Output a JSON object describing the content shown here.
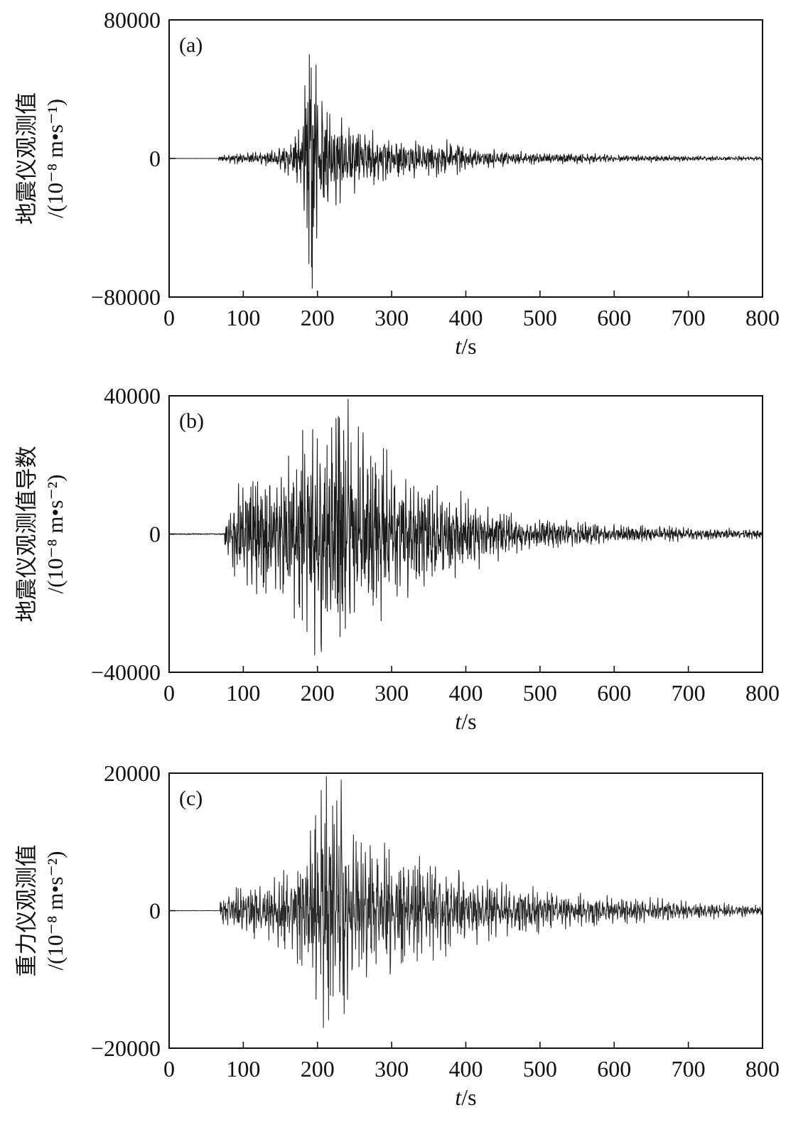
{
  "chart_data": [
    {
      "type": "line",
      "panel_label": "(a)",
      "ylabel": "地震仪观测值",
      "yunit": "/(10⁻⁸ m•s⁻¹)",
      "xlabel": "t/s",
      "xlim": [
        0,
        800
      ],
      "ylim": [
        -80000,
        80000
      ],
      "xticks": [
        "0",
        "100",
        "200",
        "300",
        "400",
        "500",
        "600",
        "700",
        "800"
      ],
      "yticks": [
        {
          "value": 80000,
          "label": "80000"
        },
        {
          "value": 0,
          "label": "0"
        },
        {
          "value": -80000,
          "label": "−80000"
        }
      ],
      "color": "#1a1a1a",
      "series": [
        {
          "signal": {
            "onset": 67,
            "dt": 0.5,
            "seed": 11,
            "tail_level": 500,
            "base_noise": 60,
            "envelope": [
              [
                60,
                0
              ],
              [
                67,
                1500
              ],
              [
                100,
                3500
              ],
              [
                140,
                4500
              ],
              [
                160,
                9000
              ],
              [
                175,
                16000
              ],
              [
                185,
                48000
              ],
              [
                190,
                62000
              ],
              [
                195,
                70000
              ],
              [
                200,
                45000
              ],
              [
                215,
                28000
              ],
              [
                240,
                22000
              ],
              [
                270,
                16000
              ],
              [
                300,
                12500
              ],
              [
                340,
                10500
              ],
              [
                380,
                10000
              ],
              [
                420,
                5500
              ],
              [
                460,
                4200
              ],
              [
                500,
                3300
              ],
              [
                560,
                3000
              ],
              [
                600,
                2000
              ],
              [
                650,
                2000
              ],
              [
                700,
                1600
              ],
              [
                800,
                1100
              ]
            ],
            "spikes": [
              [
                189,
                60000
              ],
              [
                193,
                -75000
              ],
              [
                186,
                -40000
              ],
              [
                198,
                54000
              ],
              [
                183,
                42000
              ]
            ]
          }
        }
      ]
    },
    {
      "type": "line",
      "panel_label": "(b)",
      "ylabel": "地震仪观测值导数",
      "yunit": "/(10⁻⁸ m•s⁻²)",
      "xlabel": "t/s",
      "xlim": [
        0,
        800
      ],
      "ylim": [
        -40000,
        40000
      ],
      "xticks": [
        "0",
        "100",
        "200",
        "300",
        "400",
        "500",
        "600",
        "700",
        "800"
      ],
      "yticks": [
        {
          "value": 40000,
          "label": "40000"
        },
        {
          "value": 0,
          "label": "0"
        },
        {
          "value": -40000,
          "label": "−40000"
        }
      ],
      "color": "#1a1a1a",
      "series": [
        {
          "signal": {
            "onset": 75,
            "dt": 0.45,
            "seed": 23,
            "tail_level": 500,
            "base_noise": 300,
            "envelope": [
              [
                73,
                0
              ],
              [
                76,
                6000
              ],
              [
                100,
                17000
              ],
              [
                140,
                20000
              ],
              [
                180,
                26000
              ],
              [
                200,
                30000
              ],
              [
                240,
                33000
              ],
              [
                260,
                28000
              ],
              [
                300,
                22000
              ],
              [
                350,
                15000
              ],
              [
                400,
                11000
              ],
              [
                430,
                8500
              ],
              [
                460,
                6000
              ],
              [
                500,
                4500
              ],
              [
                560,
                3500
              ],
              [
                600,
                2600
              ],
              [
                700,
                1800
              ],
              [
                800,
                1300
              ]
            ],
            "spikes": [
              [
                241,
                39000
              ],
              [
                196,
                -35000
              ],
              [
                228,
                34000
              ],
              [
                205,
                -34000
              ],
              [
                255,
                31000
              ],
              [
                180,
                30000
              ]
            ]
          }
        }
      ]
    },
    {
      "type": "line",
      "panel_label": "(c)",
      "ylabel": "重力仪观测值",
      "yunit": "/(10⁻⁸ m•s⁻²)",
      "xlabel": "t/s",
      "xlim": [
        0,
        800
      ],
      "ylim": [
        -20000,
        20000
      ],
      "xticks": [
        "0",
        "100",
        "200",
        "300",
        "400",
        "500",
        "600",
        "700",
        "800"
      ],
      "yticks": [
        {
          "value": 20000,
          "label": "20000"
        },
        {
          "value": 0,
          "label": "0"
        },
        {
          "value": -20000,
          "label": "−20000"
        }
      ],
      "color": "#2a2a2a",
      "series": [
        {
          "signal": {
            "onset": 69,
            "dt": 0.5,
            "seed": 37,
            "tail_level": 200,
            "base_noise": 40,
            "envelope": [
              [
                67,
                0
              ],
              [
                70,
                1800
              ],
              [
                100,
                3800
              ],
              [
                140,
                4500
              ],
              [
                170,
                7000
              ],
              [
                190,
                11000
              ],
              [
                210,
                17000
              ],
              [
                240,
                13000
              ],
              [
                270,
                10000
              ],
              [
                300,
                9000
              ],
              [
                340,
                7500
              ],
              [
                380,
                6000
              ],
              [
                420,
                4500
              ],
              [
                460,
                3700
              ],
              [
                500,
                3200
              ],
              [
                560,
                2400
              ],
              [
                600,
                2200
              ],
              [
                650,
                1800
              ],
              [
                700,
                1300
              ],
              [
                800,
                800
              ]
            ],
            "spikes": [
              [
                212,
                19500
              ],
              [
                208,
                -17000
              ],
              [
                232,
                19000
              ],
              [
                236,
                -15000
              ],
              [
                205,
                17500
              ],
              [
                226,
                16000
              ]
            ]
          }
        }
      ]
    }
  ]
}
